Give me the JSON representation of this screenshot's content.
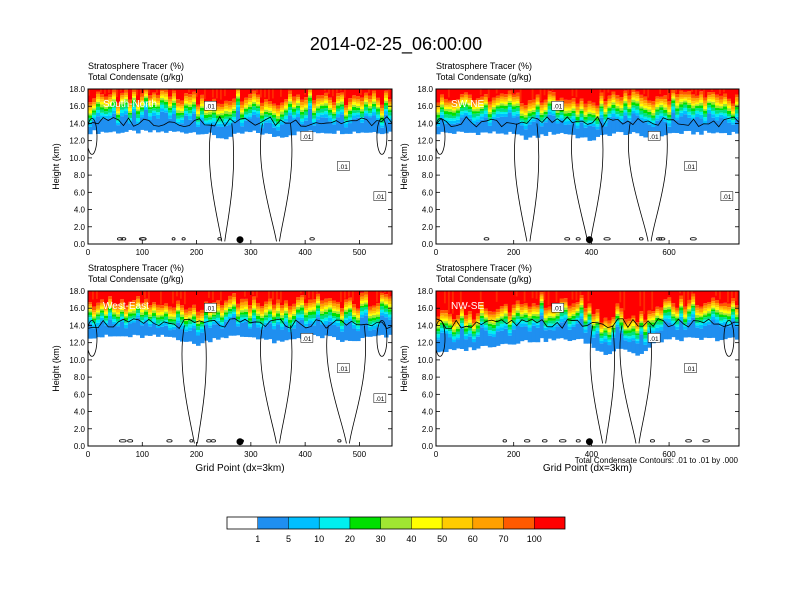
{
  "figure": {
    "title": "2014-02-25_06:00:00",
    "contour_note": "Total Condensate Contours: .01 to .01 by .000",
    "marker": "filled-circle"
  },
  "chart_data": [
    {
      "type": "heatmap",
      "panel_label": "South-North",
      "title_lines": [
        "Stratosphere Tracer   (%)",
        "Total Condensate   (g/kg)"
      ],
      "ylabel": "Height (km)",
      "xlabel": "",
      "xlim": [
        0,
        560
      ],
      "ylim": [
        0,
        18
      ],
      "xticks": [
        "0",
        "100",
        "200",
        "300",
        "400",
        "500"
      ],
      "yticks": [
        "0.0",
        "2.0",
        "4.0",
        "6.0",
        "8.0",
        "10.0",
        "12.0",
        "14.0",
        "16.0",
        "18.0"
      ],
      "contour_labels": [
        ".01",
        ".01",
        ".01",
        ".01"
      ],
      "marker_x": 280
    },
    {
      "type": "heatmap",
      "panel_label": "SW-NE",
      "title_lines": [
        "Stratosphere Tracer   (%)",
        "Total Condensate   (g/kg)"
      ],
      "ylabel": "Height (km)",
      "xlabel": "",
      "xlim": [
        0,
        780
      ],
      "ylim": [
        0,
        18
      ],
      "xticks": [
        "0",
        "200",
        "400",
        "600"
      ],
      "yticks": [
        "0.0",
        "2.0",
        "4.0",
        "6.0",
        "8.0",
        "10.0",
        "12.0",
        "14.0",
        "16.0",
        "18.0"
      ],
      "contour_labels": [
        ".01",
        ".01",
        ".01",
        ".01"
      ],
      "marker_x": 395
    },
    {
      "type": "heatmap",
      "panel_label": "West-East",
      "title_lines": [
        "Stratosphere Tracer   (%)",
        "Total Condensate   (g/kg)"
      ],
      "ylabel": "Height (km)",
      "xlabel": "Grid Point (dx=3km)",
      "xlim": [
        0,
        560
      ],
      "ylim": [
        0,
        18
      ],
      "xticks": [
        "0",
        "100",
        "200",
        "300",
        "400",
        "500"
      ],
      "yticks": [
        "0.0",
        "2.0",
        "4.0",
        "6.0",
        "8.0",
        "10.0",
        "12.0",
        "14.0",
        "16.0",
        "18.0"
      ],
      "contour_labels": [
        ".01",
        ".01",
        ".01",
        ".01"
      ],
      "marker_x": 280
    },
    {
      "type": "heatmap",
      "panel_label": "NW-SE",
      "title_lines": [
        "Stratosphere Tracer   (%)",
        "Total Condensate   (g/kg)"
      ],
      "ylabel": "Height (km)",
      "xlabel": "Grid Point (dx=3km)",
      "xlim": [
        0,
        780
      ],
      "ylim": [
        0,
        18
      ],
      "xticks": [
        "0",
        "200",
        "400",
        "600"
      ],
      "yticks": [
        "0.0",
        "2.0",
        "4.0",
        "6.0",
        "8.0",
        "10.0",
        "12.0",
        "14.0",
        "16.0",
        "18.0"
      ],
      "contour_labels": [
        ".01",
        ".01",
        ".01"
      ],
      "marker_x": 395
    }
  ],
  "colorbar": {
    "labels": [
      "1",
      "5",
      "10",
      "20",
      "30",
      "40",
      "50",
      "60",
      "70",
      "100"
    ],
    "colors": [
      "#ffffff",
      "#1f8ff0",
      "#00bfff",
      "#00efef",
      "#00e080",
      "#00e000",
      "#a0e632",
      "#ffff00",
      "#ffcc00",
      "#ffa000",
      "#ff5a00",
      "#ff0000"
    ]
  }
}
